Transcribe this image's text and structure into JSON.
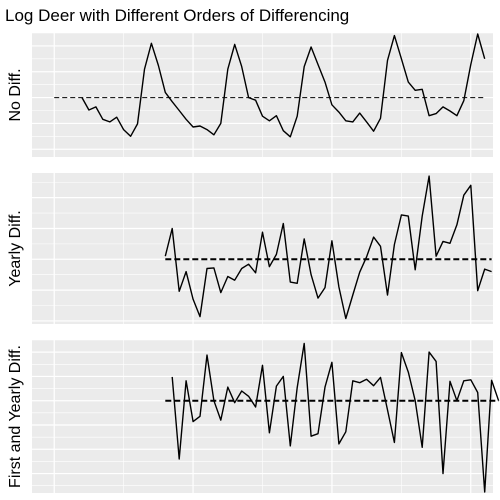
{
  "chart_data": {
    "type": "line",
    "title": "Log Deer with Different Orders of Differencing",
    "xlabel": "",
    "x_tick_labels": [],
    "y_tick_labels": [],
    "grid": true,
    "legend": "none",
    "colors": {
      "panel": "#EBEBEB",
      "grid": "#FFFFFF",
      "line": "#000000",
      "reference": "#000000"
    },
    "panels": [
      {
        "ylabel": "No Diff.",
        "ylim": [
          -1.15,
          1.25
        ],
        "reference_y": 0.0,
        "reference_from_x": 0,
        "reference_style": "dashed-thin",
        "series": {
          "x_start": 4,
          "values": [
            0.0,
            -0.24,
            -0.18,
            -0.42,
            -0.47,
            -0.38,
            -0.62,
            -0.75,
            -0.51,
            0.55,
            1.05,
            0.62,
            0.1,
            -0.08,
            -0.25,
            -0.42,
            -0.57,
            -0.55,
            -0.62,
            -0.72,
            -0.5,
            0.55,
            1.03,
            0.6,
            0.0,
            -0.05,
            -0.36,
            -0.45,
            -0.35,
            -0.64,
            -0.76,
            -0.36,
            0.6,
            0.98,
            0.64,
            0.3,
            -0.14,
            -0.28,
            -0.45,
            -0.47,
            -0.3,
            -0.47,
            -0.65,
            -0.4,
            0.72,
            1.2,
            0.75,
            0.3,
            0.14,
            0.16,
            -0.35,
            -0.31,
            -0.18,
            -0.26,
            -0.35,
            -0.06,
            0.64,
            1.23,
            0.75
          ]
        }
      },
      {
        "ylabel": "Yearly Diff.",
        "ylim": [
          -1.05,
          1.4
        ],
        "reference_y": 0.0,
        "reference_from_x": 16,
        "reference_style": "dashed-thick",
        "series": {
          "x_start": 16,
          "values": [
            0.05,
            0.5,
            -0.52,
            -0.2,
            -0.65,
            -0.93,
            -0.15,
            -0.14,
            -0.54,
            -0.28,
            -0.34,
            -0.15,
            -0.08,
            -0.22,
            0.44,
            -0.12,
            0.08,
            0.58,
            -0.37,
            -0.39,
            0.33,
            -0.25,
            -0.63,
            -0.46,
            0.3,
            -0.45,
            -0.96,
            -0.58,
            -0.21,
            0.04,
            0.36,
            0.21,
            -0.58,
            0.24,
            0.72,
            0.7,
            -0.17,
            0.7,
            1.35,
            0.05,
            0.29,
            0.26,
            0.56,
            1.04,
            1.2,
            -0.51,
            -0.16,
            -0.2
          ]
        }
      },
      {
        "ylabel": "First and Yearly Diff.",
        "ylim": [
          -1.9,
          1.25
        ],
        "reference_y": 0.0,
        "reference_from_x": 16,
        "reference_style": "dashed-thick",
        "series": {
          "x_start": 17,
          "values": [
            0.49,
            -1.2,
            0.41,
            -0.43,
            -0.32,
            0.94,
            0.0,
            -0.4,
            0.28,
            -0.04,
            0.2,
            0.09,
            -0.13,
            0.73,
            -0.66,
            0.3,
            0.5,
            -0.93,
            0.27,
            1.18,
            -0.73,
            -0.68,
            0.28,
            0.79,
            -0.89,
            -0.64,
            0.41,
            0.37,
            0.44,
            0.31,
            0.48,
            -0.19,
            -0.86,
            0.99,
            0.59,
            0.0,
            -0.96,
            1.0,
            0.81,
            -1.5,
            0.4,
            0.0,
            0.41,
            0.43,
            0.17,
            -1.88,
            0.42,
            0.0
          ]
        }
      }
    ]
  }
}
